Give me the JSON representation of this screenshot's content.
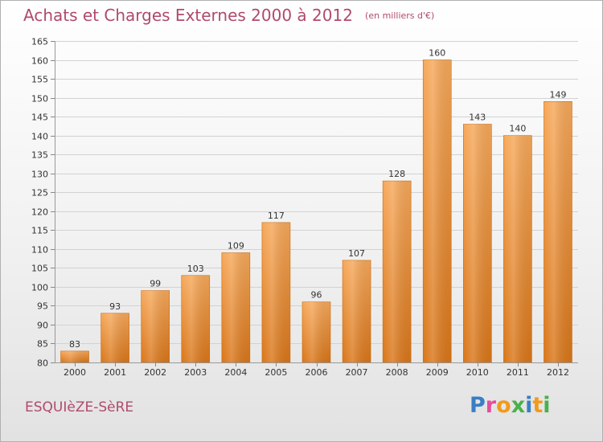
{
  "title": "Achats et Charges Externes 2000 à 2012",
  "unit": "(en milliers d'€)",
  "commune": "ESQUIèZE-SèRE",
  "logo": {
    "letters": [
      "P",
      "r",
      "o",
      "x",
      "i",
      "t",
      "i"
    ],
    "colors": [
      "#3a7fc4",
      "#e84c9c",
      "#f29a1c",
      "#49b14a",
      "#3a7fc4",
      "#f29a1c",
      "#49b14a"
    ]
  },
  "chart_data": {
    "type": "bar",
    "categories": [
      "2000",
      "2001",
      "2002",
      "2003",
      "2004",
      "2005",
      "2006",
      "2007",
      "2008",
      "2009",
      "2010",
      "2011",
      "2012"
    ],
    "values": [
      83,
      93,
      99,
      103,
      109,
      117,
      96,
      107,
      128,
      160,
      143,
      140,
      149
    ],
    "title": "Achats et Charges Externes 2000 à 2012",
    "xlabel": "",
    "ylabel": "",
    "ylim": [
      80,
      165
    ],
    "yticks": [
      80,
      85,
      90,
      95,
      100,
      105,
      110,
      115,
      120,
      125,
      130,
      135,
      140,
      145,
      150,
      155,
      160,
      165
    ],
    "grid": true,
    "legend": "none",
    "bar_color": "#f0953a"
  }
}
